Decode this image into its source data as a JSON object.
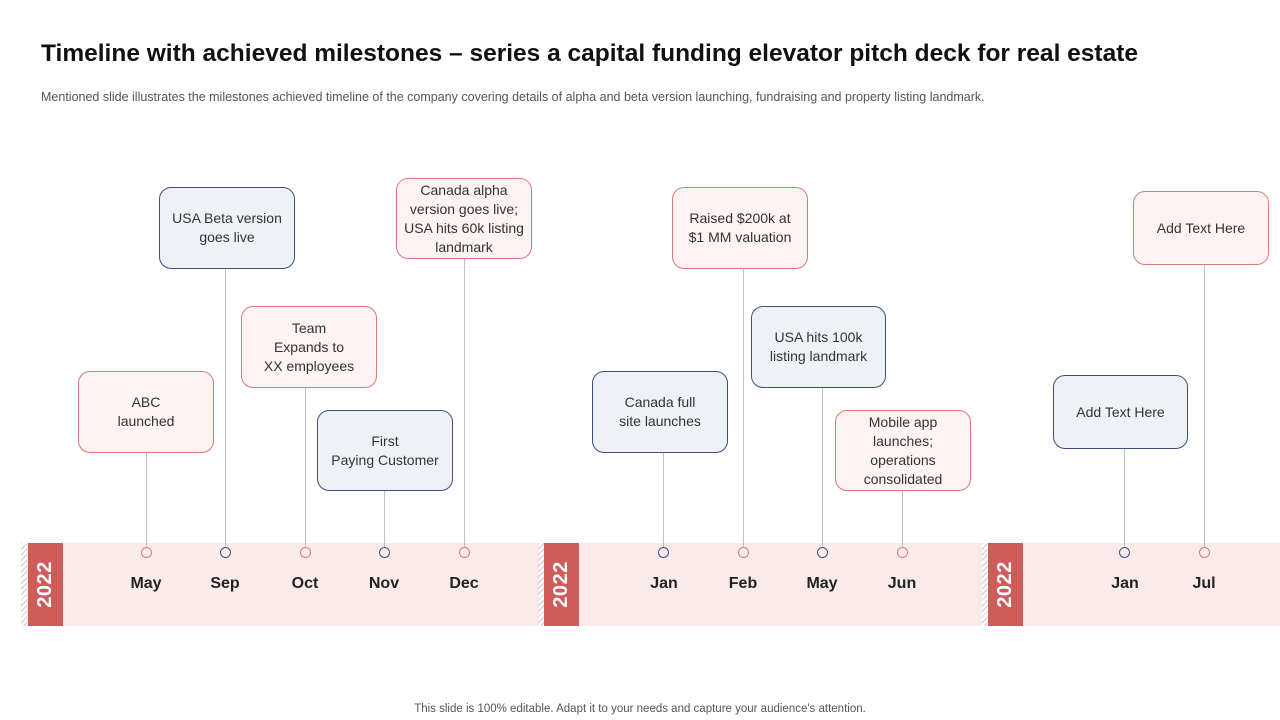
{
  "title": "Timeline with achieved milestones – series a capital funding elevator pitch deck for real estate",
  "subtitle": "Mentioned slide illustrates the milestones achieved timeline of the company covering details of alpha and beta version launching, fundraising and property listing landmark.",
  "footer": "This slide is 100% editable. Adapt it to your needs and capture your audience's attention.",
  "colors": {
    "accent_red": "#cf5b5b",
    "band": "#fbeaea",
    "navy": "#3e5082",
    "border_red": "#d97a7a"
  },
  "years": [
    "2022",
    "2022",
    "2022"
  ],
  "milestones": [
    {
      "month": "May",
      "text": "ABC\nlaunched"
    },
    {
      "month": "Sep",
      "text": "USA Beta version\ngoes live"
    },
    {
      "month": "Oct",
      "text": "Team\nExpands to\nXX employees"
    },
    {
      "month": "Nov",
      "text": "First\nPaying Customer"
    },
    {
      "month": "Dec",
      "text": "Canada alpha\nversion goes live;\nUSA hits 60k listing\nlandmark"
    },
    {
      "month": "Jan",
      "text": "Canada full\nsite launches"
    },
    {
      "month": "Feb",
      "text": "Raised $200k at\n$1 MM valuation"
    },
    {
      "month": "May",
      "text": "USA hits 100k\nlisting landmark"
    },
    {
      "month": "Jun",
      "text": "Mobile app\nlaunches;\noperations\nconsolidated"
    },
    {
      "month": "Jan",
      "text": "Add Text Here"
    },
    {
      "month": "Jul",
      "text": "Add Text Here"
    }
  ]
}
